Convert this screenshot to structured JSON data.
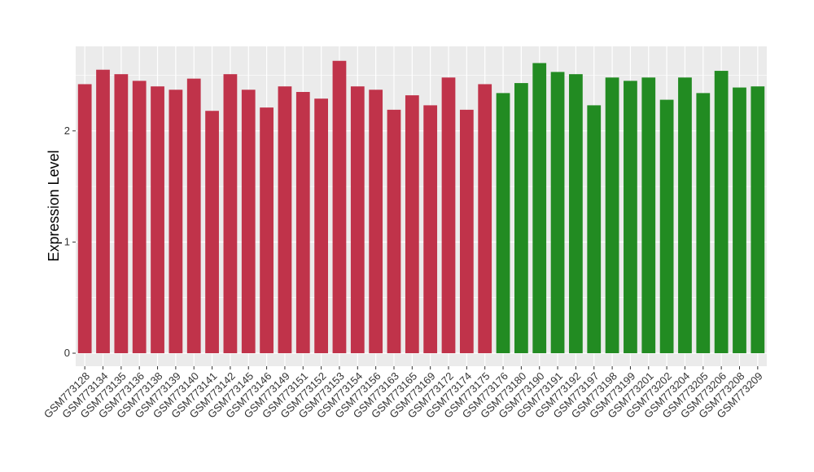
{
  "chart_data": {
    "type": "bar",
    "ylabel": "Expression Level",
    "categories": [
      "GSM773128",
      "GSM773134",
      "GSM773135",
      "GSM773136",
      "GSM773138",
      "GSM773139",
      "GSM773140",
      "GSM773141",
      "GSM773142",
      "GSM773145",
      "GSM773146",
      "GSM773149",
      "GSM773151",
      "GSM773152",
      "GSM773153",
      "GSM773154",
      "GSM773156",
      "GSM773163",
      "GSM773165",
      "GSM773169",
      "GSM773172",
      "GSM773174",
      "GSM773175",
      "GSM773176",
      "GSM773180",
      "GSM773190",
      "GSM773191",
      "GSM773192",
      "GSM773197",
      "GSM773198",
      "GSM773199",
      "GSM773201",
      "GSM773202",
      "GSM773204",
      "GSM773205",
      "GSM773206",
      "GSM773208",
      "GSM773209"
    ],
    "values": [
      2.42,
      2.55,
      2.51,
      2.45,
      2.4,
      2.37,
      2.47,
      2.18,
      2.51,
      2.37,
      2.21,
      2.4,
      2.35,
      2.29,
      2.63,
      2.4,
      2.37,
      2.19,
      2.32,
      2.23,
      2.48,
      2.19,
      2.42,
      2.34,
      2.43,
      2.61,
      2.53,
      2.51,
      2.23,
      2.48,
      2.45,
      2.48,
      2.28,
      2.48,
      2.34,
      2.54,
      2.39,
      2.4
    ],
    "colors": [
      "#c0334a",
      "#c0334a",
      "#c0334a",
      "#c0334a",
      "#c0334a",
      "#c0334a",
      "#c0334a",
      "#c0334a",
      "#c0334a",
      "#c0334a",
      "#c0334a",
      "#c0334a",
      "#c0334a",
      "#c0334a",
      "#c0334a",
      "#c0334a",
      "#c0334a",
      "#c0334a",
      "#c0334a",
      "#c0334a",
      "#c0334a",
      "#c0334a",
      "#c0334a",
      "#228b22",
      "#228b22",
      "#228b22",
      "#228b22",
      "#228b22",
      "#228b22",
      "#228b22",
      "#228b22",
      "#228b22",
      "#228b22",
      "#228b22",
      "#228b22",
      "#228b22",
      "#228b22",
      "#228b22"
    ],
    "ylim": [
      -0.117,
      2.76
    ],
    "yticks": [
      0,
      1,
      2
    ],
    "grid": true
  }
}
